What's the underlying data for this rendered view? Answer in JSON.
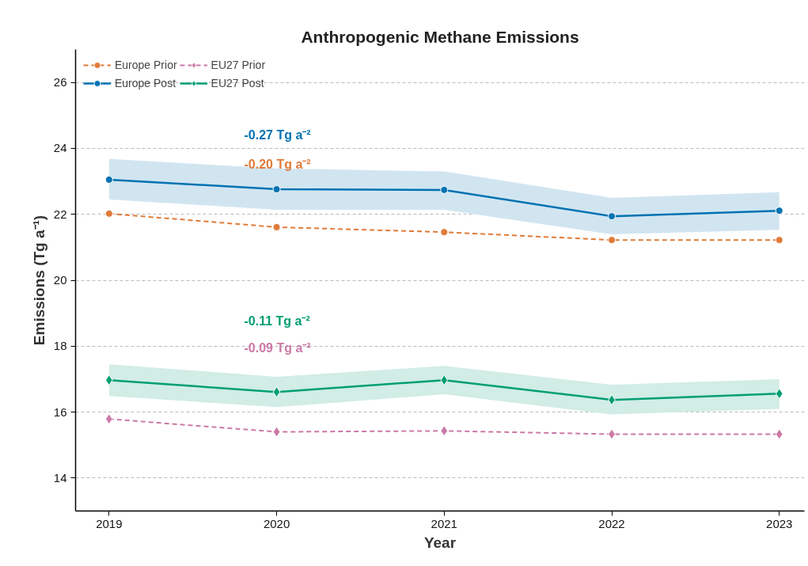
{
  "chart_data": {
    "type": "line",
    "title": "Anthropogenic Methane Emissions",
    "xlabel": "Year",
    "ylabel": "Emissions (Tg a⁻¹)",
    "x": [
      2019,
      2020,
      2021,
      2022,
      2023
    ],
    "xlim": [
      2018.8,
      2023.15
    ],
    "xticks": [
      2019,
      2020,
      2021,
      2022,
      2023
    ],
    "ylim": [
      13,
      27
    ],
    "yticks": [
      14,
      16,
      18,
      20,
      22,
      24,
      26
    ],
    "grid": "y",
    "legend": "top left",
    "series": [
      {
        "name": "Europe Prior",
        "color": "#e07b39",
        "line_style": "dashed",
        "marker": "circle",
        "values": [
          22.02,
          21.61,
          21.46,
          21.22,
          21.22
        ]
      },
      {
        "name": "Europe Post",
        "color": "#0072b2",
        "line_style": "solid",
        "marker": "circle",
        "values": [
          23.05,
          22.76,
          22.74,
          21.94,
          22.11
        ],
        "lower": [
          22.45,
          22.14,
          22.14,
          21.39,
          21.53
        ],
        "upper": [
          23.68,
          23.39,
          23.3,
          22.5,
          22.67
        ]
      },
      {
        "name": "EU27 Prior",
        "color": "#cc79a7",
        "line_style": "dashed",
        "marker": "diamond",
        "values": [
          15.79,
          15.4,
          15.43,
          15.33,
          15.33
        ]
      },
      {
        "name": "EU27 Post",
        "color": "#009e73",
        "line_style": "solid",
        "marker": "diamond",
        "values": [
          16.97,
          16.61,
          16.97,
          16.37,
          16.56
        ],
        "lower": [
          16.49,
          16.15,
          16.54,
          15.93,
          16.1
        ],
        "upper": [
          17.45,
          17.07,
          17.4,
          16.83,
          17.0
        ]
      }
    ],
    "annotations": [
      "-0.27 Tg a⁻²",
      "-0.20 Tg a⁻²",
      "-0.11 Tg a⁻²",
      "-0.09 Tg a⁻²"
    ]
  }
}
